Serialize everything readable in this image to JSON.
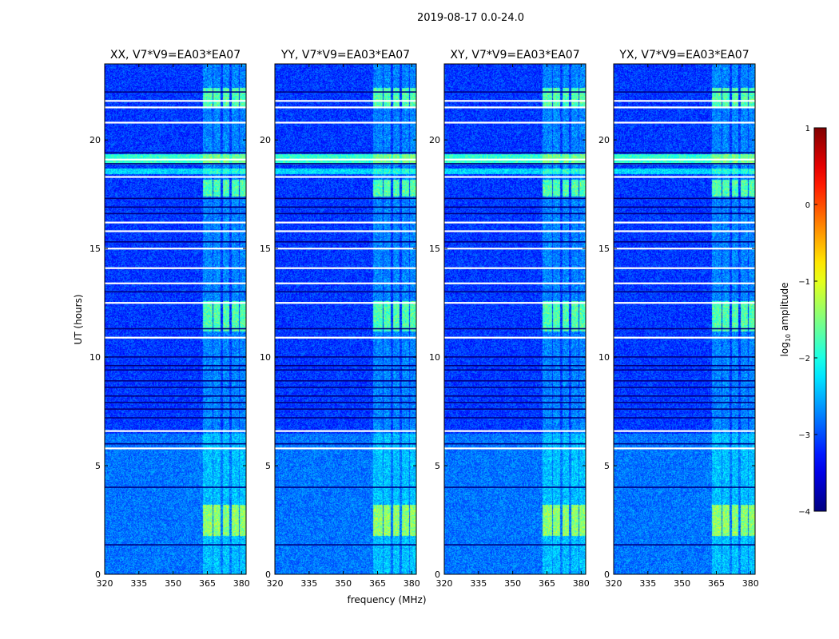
{
  "chart_data": {
    "type": "heatmap",
    "suptitle": "2019-08-17 0.0-24.0",
    "xlabel": "frequency (MHz)",
    "ylabel": "UT (hours)",
    "xlim": [
      320,
      382
    ],
    "ylim": [
      0,
      23.5
    ],
    "xticks": [
      320,
      335,
      350,
      365,
      380
    ],
    "yticks": [
      0,
      5,
      10,
      15,
      20
    ],
    "panels": [
      {
        "title": "XX, V7*V9=EA03*EA07",
        "pol": "XX"
      },
      {
        "title": "YY, V7*V9=EA03*EA07",
        "pol": "YY"
      },
      {
        "title": "XY, V7*V9=EA03*EA07",
        "pol": "XY"
      },
      {
        "title": "YX, V7*V9=EA03*EA07",
        "pol": "YX"
      }
    ],
    "colorbar": {
      "label": "log",
      "label_sub": "10",
      "label_rest": " amplitude",
      "range": [
        -4,
        1
      ],
      "ticks": [
        1,
        0,
        -1,
        -2,
        -3,
        -4
      ],
      "colormap": "jet"
    },
    "rfi_bands_mhz": [
      [
        363,
        367
      ],
      [
        367.5,
        370.5
      ],
      [
        371.5,
        374.5
      ],
      [
        375.5,
        378.5
      ],
      [
        379,
        382
      ]
    ],
    "rfi_bursts_ut": [
      [
        1.8,
        3.2
      ],
      [
        11.2,
        12.6
      ],
      [
        17.4,
        18.2
      ],
      [
        21.5,
        22.4
      ]
    ],
    "flagged_rows_ut": [
      1.35,
      4.0,
      5.8,
      6.0,
      6.6,
      7.2,
      7.6,
      7.9,
      8.2,
      8.6,
      8.9,
      9.4,
      9.6,
      10.0,
      10.9,
      11.3,
      12.5,
      13.0,
      13.4,
      14.1,
      15.0,
      15.3,
      15.8,
      16.2,
      16.6,
      16.9,
      17.3,
      18.3,
      18.9,
      19.1,
      19.4,
      20.8,
      21.5,
      21.8,
      22.2
    ],
    "flagged_rows_white_ut": [
      5.8,
      6.6,
      10.9,
      12.5,
      13.4,
      14.1,
      15.0,
      15.8,
      16.2,
      18.3,
      19.1,
      20.8,
      21.5,
      21.8
    ]
  }
}
